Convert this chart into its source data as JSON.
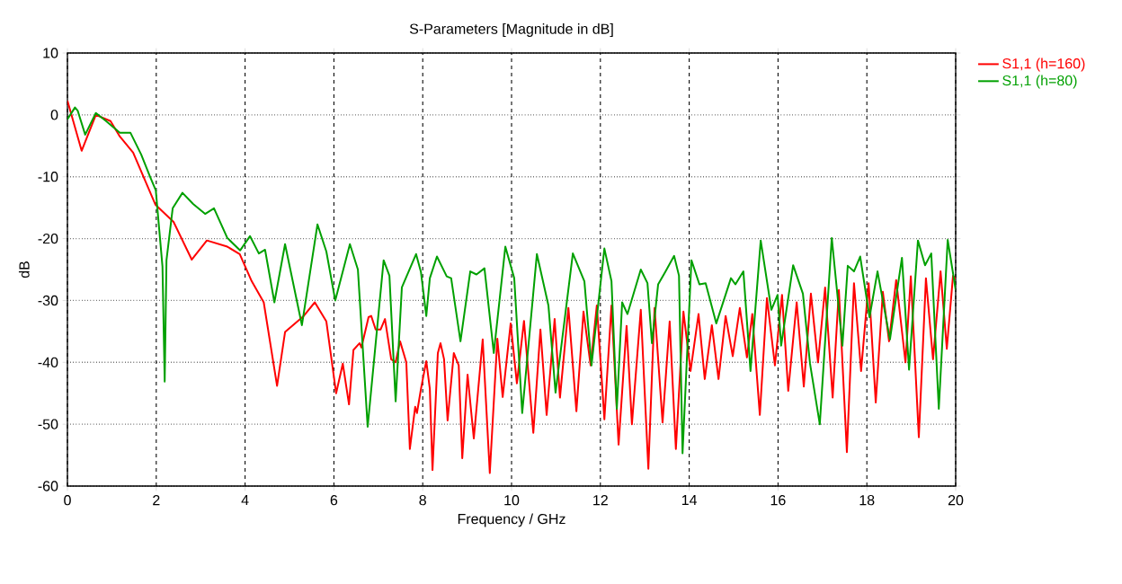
{
  "chart_data": {
    "type": "line",
    "title": "S-Parameters [Magnitude in dB]",
    "xlabel": "Frequency / GHz",
    "ylabel": "dB",
    "xlim": [
      0,
      20
    ],
    "ylim": [
      -60,
      10
    ],
    "xticks": [
      0,
      2,
      4,
      6,
      8,
      10,
      12,
      14,
      16,
      18,
      20
    ],
    "yticks": [
      -60,
      -50,
      -40,
      -30,
      -20,
      -10,
      0,
      10
    ],
    "grid": true,
    "legend": "right",
    "series": [
      {
        "name": "S1,1 (h=160)",
        "color": "#ff0000",
        "x": [
          0,
          0.32,
          0.64,
          0.97,
          1.18,
          1.48,
          1.98,
          2.39,
          2.8,
          3.14,
          3.6,
          3.88,
          4.15,
          4.42,
          4.72,
          4.9,
          5.32,
          5.57,
          5.83,
          6.05,
          6.2,
          6.34,
          6.44,
          6.58,
          6.62,
          6.78,
          6.84,
          6.94,
          7.05,
          7.15,
          7.29,
          7.39,
          7.49,
          7.63,
          7.71,
          7.83,
          7.87,
          7.96,
          8.08,
          8.16,
          8.22,
          8.34,
          8.4,
          8.48,
          8.56,
          8.7,
          8.81,
          8.89,
          9.01,
          9.15,
          9.35,
          9.51,
          9.68,
          9.8,
          9.98,
          10.12,
          10.28,
          10.49,
          10.65,
          10.79,
          10.97,
          11.09,
          11.28,
          11.46,
          11.62,
          11.78,
          11.92,
          12.09,
          12.25,
          12.41,
          12.59,
          12.71,
          12.91,
          13.08,
          13.22,
          13.4,
          13.56,
          13.7,
          13.87,
          14.03,
          14.21,
          14.35,
          14.51,
          14.66,
          14.82,
          14.98,
          15.14,
          15.3,
          15.42,
          15.59,
          15.75,
          15.93,
          16.09,
          16.23,
          16.42,
          16.58,
          16.74,
          16.9,
          17.06,
          17.23,
          17.37,
          17.55,
          17.71,
          17.87,
          18.04,
          18.2,
          18.36,
          18.5,
          18.66,
          18.87,
          18.99,
          19.17,
          19.33,
          19.49,
          19.66,
          19.8,
          19.94,
          20
        ],
        "values": [
          2.3,
          -5.8,
          0,
          -1,
          -3.5,
          -6.1,
          -14.5,
          -17.3,
          -23.4,
          -20.3,
          -21.3,
          -22.5,
          -26.9,
          -30.3,
          -43.8,
          -35.1,
          -32.5,
          -30.3,
          -33.4,
          -45,
          -40.2,
          -46.8,
          -38,
          -36.9,
          -37.6,
          -32.7,
          -32.5,
          -34.7,
          -34.7,
          -33,
          -39.5,
          -40,
          -36.6,
          -40,
          -54,
          -47.2,
          -48.2,
          -44.3,
          -39.8,
          -44.3,
          -57.4,
          -38.5,
          -36.9,
          -39.5,
          -49.4,
          -38.5,
          -40.5,
          -55.5,
          -42,
          -52.3,
          -36.3,
          -57.9,
          -36.2,
          -45.6,
          -33.7,
          -43.4,
          -33.3,
          -51.4,
          -34.7,
          -48.5,
          -33,
          -45.7,
          -31.2,
          -47.9,
          -31.8,
          -40.5,
          -30.8,
          -49.2,
          -30.8,
          -53.3,
          -34.1,
          -50,
          -31.5,
          -57.2,
          -31.2,
          -49.7,
          -33.4,
          -54,
          -31.8,
          -41.4,
          -32.2,
          -42.7,
          -34,
          -42.7,
          -32.5,
          -39,
          -31.2,
          -39.2,
          -32.2,
          -48.5,
          -29.6,
          -40.5,
          -29.1,
          -44.6,
          -30.3,
          -43.9,
          -28.9,
          -40,
          -27.9,
          -45.7,
          -28.3,
          -54.5,
          -27.2,
          -41.4,
          -27.2,
          -46.5,
          -28.6,
          -36.6,
          -26.7,
          -40,
          -26.1,
          -52.1,
          -26.4,
          -39.5,
          -25.3,
          -37.8,
          -26,
          -26.5
        ]
      },
      {
        "name": "S1,1 (h=80)",
        "color": "#00a000",
        "x": [
          0,
          0.17,
          0.23,
          0.4,
          0.64,
          0.87,
          1.18,
          1.42,
          1.66,
          1.86,
          1.99,
          2.14,
          2.19,
          2.23,
          2.37,
          2.59,
          2.83,
          3.1,
          3.3,
          3.6,
          3.89,
          4.11,
          4.31,
          4.45,
          4.66,
          4.9,
          5.28,
          5.63,
          5.83,
          6.03,
          6.36,
          6.54,
          6.76,
          7.12,
          7.25,
          7.39,
          7.53,
          7.85,
          7.96,
          8.08,
          8.16,
          8.32,
          8.54,
          8.64,
          8.85,
          9.07,
          9.21,
          9.39,
          9.6,
          9.86,
          10.06,
          10.24,
          10.57,
          10.83,
          10.99,
          11.38,
          11.64,
          11.8,
          12.09,
          12.25,
          12.37,
          12.49,
          12.61,
          12.91,
          13.06,
          13.16,
          13.3,
          13.46,
          13.66,
          13.77,
          13.85,
          14.05,
          14.23,
          14.37,
          14.61,
          14.94,
          15.04,
          15.22,
          15.38,
          15.61,
          15.85,
          15.99,
          16.07,
          16.34,
          16.56,
          16.72,
          16.94,
          17.21,
          17.45,
          17.57,
          17.71,
          17.85,
          18.06,
          18.24,
          18.52,
          18.79,
          18.95,
          19.15,
          19.31,
          19.45,
          19.62,
          19.82,
          20
        ],
        "values": [
          -0.7,
          1.2,
          0.7,
          -3.2,
          0.3,
          -1,
          -2.9,
          -2.9,
          -6.4,
          -10,
          -12.2,
          -24.5,
          -43.1,
          -23.5,
          -15.1,
          -12.6,
          -14.4,
          -16,
          -15.1,
          -19.9,
          -21.9,
          -19.6,
          -22.4,
          -21.8,
          -30.3,
          -20.9,
          -34,
          -17.7,
          -22.1,
          -30,
          -20.9,
          -25,
          -50.4,
          -23.5,
          -26,
          -46.3,
          -27.9,
          -22.5,
          -25.4,
          -32.5,
          -26.4,
          -22.9,
          -26.1,
          -26.4,
          -36.6,
          -25.3,
          -25.8,
          -24.8,
          -38.5,
          -21.3,
          -26.4,
          -48.2,
          -22.5,
          -30.8,
          -44.9,
          -22.4,
          -26.9,
          -40.5,
          -21.6,
          -26.9,
          -47.5,
          -30.3,
          -32.2,
          -25,
          -27.2,
          -36.9,
          -27.4,
          -25.4,
          -22.8,
          -26,
          -54.7,
          -23.5,
          -27.4,
          -27.2,
          -33.7,
          -26.4,
          -27.4,
          -25.3,
          -41.4,
          -20.3,
          -31.5,
          -29.1,
          -37.3,
          -24.3,
          -28.9,
          -40.2,
          -50,
          -19.9,
          -37.3,
          -24.4,
          -25.3,
          -22.9,
          -32.7,
          -25.3,
          -36.3,
          -23.1,
          -41.2,
          -20.3,
          -24.3,
          -22.4,
          -47.5,
          -20.2,
          -28.3
        ]
      }
    ]
  }
}
